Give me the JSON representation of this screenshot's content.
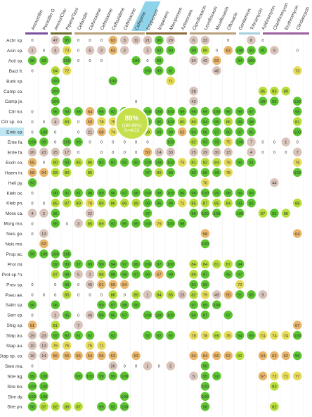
{
  "chart_data": {
    "type": "dotmatrix",
    "columns": [
      "Amoxicillin",
      "Penicillin G",
      "Amoxi/Clav",
      "Pipera/Tazo",
      "Cefazolin",
      "Cefuroxime",
      "Cefotaxime",
      "Ceftazidime",
      "Ceftriaxone",
      "Cefepime",
      "Ertapenem",
      "Imipenem",
      "Meropenem",
      "Aztreonam",
      "Ciprofloxacin",
      "Levofloxacin",
      "Moxifloxacin",
      "Ofloxacin",
      "Gentamicin",
      "Tobramycin",
      "Azithromycin",
      "Clarithromycin",
      "Erythromycin",
      "Clindamycin"
    ],
    "rows": [
      {
        "name": "Achr sp.",
        "values": [
          0,
          null,
          47,
          95,
          0,
          0,
          0,
          63,
          3,
          11,
          21,
          96,
          20,
          null,
          6,
          33,
          null,
          0,
          null,
          8,
          0,
          null,
          null,
          null
        ]
      },
      {
        "name": "Acin sp.",
        "values": [
          1,
          0,
          4,
          73,
          0,
          5,
          2,
          63,
          2,
          null,
          2,
          92,
          90,
          null,
          90,
          89,
          0,
          63,
          100,
          90,
          91,
          9,
          null,
          0
        ]
      },
      {
        "name": "Acti sp.",
        "values": [
          96,
          93,
          null,
          100,
          0,
          0,
          0,
          null,
          null,
          100,
          0,
          99,
          null,
          null,
          34,
          42,
          50,
          null,
          94,
          100,
          null,
          null,
          null,
          null
        ]
      },
      {
        "name": "Bact fr.",
        "values": [
          0,
          null,
          84,
          72,
          null,
          null,
          null,
          null,
          null,
          null,
          100,
          93,
          91,
          null,
          null,
          null,
          48,
          null,
          null,
          null,
          null,
          null,
          null,
          73
        ]
      },
      {
        "name": "Burk sp.",
        "values": [
          null,
          null,
          100,
          null,
          null,
          null,
          null,
          100,
          null,
          null,
          null,
          null,
          71,
          null,
          null,
          null,
          null,
          null,
          null,
          null,
          null,
          null,
          null,
          null
        ]
      },
      {
        "name": "Camp co.",
        "values": [
          null,
          null,
          100,
          null,
          null,
          null,
          null,
          null,
          null,
          null,
          null,
          null,
          null,
          null,
          28,
          null,
          null,
          null,
          null,
          null,
          85,
          83,
          80,
          null
        ]
      },
      {
        "name": "Camp je.",
        "values": [
          null,
          null,
          100,
          null,
          null,
          null,
          null,
          null,
          null,
          0,
          null,
          null,
          null,
          null,
          42,
          null,
          null,
          null,
          null,
          null,
          99,
          92,
          null,
          100
        ]
      },
      {
        "name": "Citr ko.",
        "values": [
          0,
          null,
          96,
          93,
          98,
          64,
          96,
          92,
          97,
          99,
          100,
          100,
          100,
          99,
          96,
          99,
          100,
          96,
          99,
          97,
          null,
          null,
          null,
          98
        ]
      },
      {
        "name": "Citr sp. no.",
        "values": [
          0,
          0,
          4,
          83,
          0,
          50,
          78,
          75,
          76,
          79,
          90,
          96,
          100,
          80,
          80,
          94,
          95,
          86,
          99,
          98,
          null,
          null,
          null,
          81
        ]
      },
      {
        "name": "Ente sp.",
        "values": [
          0,
          100,
          0,
          null,
          0,
          21,
          68,
          74,
          85,
          null,
          89,
          99,
          99,
          62,
          94,
          96,
          97,
          96,
          97,
          95,
          null,
          null,
          null,
          100
        ]
      },
      {
        "name": "Ente fa.",
        "values": [
          100,
          99,
          0,
          100,
          99,
          0,
          0,
          0,
          0,
          0,
          0,
          null,
          100,
          null,
          82,
          93,
          95,
          75,
          100,
          7,
          0,
          0,
          1,
          0
        ]
      },
      {
        "name": "Ente fa.",
        "values": [
          26,
          23,
          25,
          17,
          0,
          null,
          0,
          0,
          0,
          0,
          50,
          14,
          33,
          null,
          25,
          29,
          30,
          13,
          null,
          4,
          0,
          0,
          0,
          7
        ]
      },
      {
        "name": "Esch co.",
        "values": [
          55,
          0,
          80,
          93,
          85,
          86,
          92,
          91,
          92,
          92,
          100,
          100,
          100,
          75,
          81,
          82,
          84,
          78,
          92,
          91,
          null,
          null,
          null,
          76
        ]
      },
      {
        "name": "Haem in.",
        "values": [
          68,
          64,
          83,
          80,
          null,
          85,
          null,
          null,
          null,
          null,
          97,
          89,
          99,
          null,
          92,
          96,
          99,
          78,
          null,
          null,
          null,
          null,
          null,
          100
        ]
      },
      {
        "name": "Heli py.",
        "values": [
          93,
          null,
          null,
          null,
          null,
          null,
          null,
          null,
          null,
          null,
          null,
          null,
          null,
          null,
          null,
          70,
          null,
          null,
          null,
          null,
          null,
          44,
          null,
          null
        ]
      },
      {
        "name": "Kleb ox.",
        "values": [
          0,
          null,
          90,
          91,
          91,
          98,
          99,
          96,
          97,
          98,
          100,
          98,
          100,
          96,
          98,
          100,
          99,
          98,
          99,
          99,
          null,
          null,
          null,
          null
        ]
      },
      {
        "name": "Kleb pn.",
        "values": [
          0,
          0,
          85,
          87,
          80,
          78,
          89,
          86,
          86,
          89,
          99,
          96,
          99,
          71,
          85,
          87,
          85,
          84,
          93,
          92,
          null,
          null,
          null,
          88
        ]
      },
      {
        "name": "Mora ca.",
        "values": [
          4,
          2,
          95,
          null,
          null,
          22,
          null,
          null,
          null,
          null,
          97,
          null,
          null,
          null,
          99,
          100,
          100,
          null,
          100,
          null,
          87,
          92,
          86,
          null
        ]
      },
      {
        "name": "Morg mo.",
        "values": [
          0,
          null,
          96,
          0,
          3,
          85,
          89,
          92,
          95,
          99,
          100,
          79,
          100,
          98,
          null,
          null,
          null,
          null,
          null,
          null,
          null,
          null,
          null,
          null
        ]
      },
      {
        "name": "Neis go.",
        "values": [
          0,
          13,
          null,
          null,
          null,
          null,
          null,
          null,
          null,
          null,
          null,
          null,
          null,
          null,
          null,
          58,
          null,
          null,
          null,
          null,
          null,
          null,
          null,
          64
        ]
      },
      {
        "name": "Neis me.",
        "values": [
          null,
          62,
          null,
          null,
          null,
          null,
          null,
          null,
          null,
          null,
          null,
          null,
          null,
          null,
          null,
          100,
          null,
          null,
          null,
          null,
          null,
          null,
          null,
          null
        ]
      },
      {
        "name": "Prop ac.",
        "values": [
          99,
          100,
          100,
          100,
          null,
          null,
          null,
          null,
          null,
          null,
          null,
          null,
          null,
          null,
          null,
          null,
          null,
          null,
          null,
          null,
          null,
          null,
          null,
          null
        ]
      },
      {
        "name": "Prot mi.",
        "values": [
          null,
          null,
          92,
          99,
          97,
          99,
          99,
          94,
          97,
          99,
          100,
          97,
          100,
          null,
          84,
          84,
          81,
          87,
          94,
          null,
          null,
          null,
          null,
          null
        ]
      },
      {
        "name": "Prot sp.*n.",
        "values": [
          null,
          null,
          87,
          98,
          5,
          2,
          88,
          98,
          99,
          97,
          99,
          67,
          99,
          null,
          89,
          97,
          null,
          95,
          97,
          null,
          null,
          null,
          null,
          null
        ]
      },
      {
        "name": "Prov sp.",
        "values": [
          0,
          null,
          0,
          99,
          0,
          45,
          61,
          59,
          64,
          null,
          null,
          null,
          null,
          null,
          91,
          93,
          null,
          null,
          72,
          null,
          null,
          null,
          null,
          null
        ]
      },
      {
        "name": "Pseu ae.",
        "values": [
          0,
          0,
          0,
          85,
          0,
          0,
          0,
          88,
          0,
          89,
          1,
          84,
          85,
          23,
          82,
          79,
          49,
          55,
          91,
          95,
          9,
          null,
          null,
          null
        ]
      },
      {
        "name": "Salm sp.",
        "values": [
          96,
          null,
          96,
          null,
          null,
          null,
          99,
          97,
          98,
          99,
          null,
          null,
          null,
          null,
          97,
          99,
          100,
          null,
          null,
          null,
          null,
          null,
          null,
          null
        ]
      },
      {
        "name": "Serr sp.",
        "values": [
          0,
          null,
          1,
          95,
          0,
          49,
          99,
          95,
          97,
          null,
          100,
          100,
          100,
          null,
          94,
          97,
          null,
          97,
          null,
          null,
          null,
          null,
          null,
          null
        ]
      },
      {
        "name": "Shig sp.",
        "values": [
          61,
          null,
          81,
          null,
          7,
          null,
          null,
          null,
          null,
          null,
          null,
          null,
          null,
          null,
          null,
          null,
          null,
          null,
          null,
          null,
          null,
          null,
          null,
          67
        ]
      },
      {
        "name": "Stap au.",
        "values": [
          29,
          23,
          92,
          92,
          91,
          92,
          null,
          92,
          null,
          null,
          92,
          92,
          92,
          null,
          78,
          78,
          89,
          78,
          94,
          99,
          74,
          74,
          74,
          100
        ]
      },
      {
        "name": "Stap au.",
        "values": [
          10,
          13,
          76,
          75,
          null,
          75,
          71,
          null,
          null,
          null,
          null,
          null,
          null,
          null,
          null,
          null,
          null,
          null,
          null,
          null,
          null,
          null,
          null,
          null
        ]
      },
      {
        "name": "Stap sp. co.",
        "values": [
          16,
          14,
          56,
          56,
          56,
          54,
          56,
          53,
          null,
          53,
          null,
          null,
          null,
          null,
          64,
          64,
          66,
          62,
          82,
          null,
          54,
          62,
          62,
          99
        ]
      },
      {
        "name": "Sten ma.",
        "values": [
          0,
          null,
          null,
          null,
          null,
          null,
          null,
          26,
          0,
          0,
          1,
          0,
          2,
          null,
          null,
          90,
          null,
          null,
          null,
          null,
          null,
          null,
          null,
          null
        ]
      },
      {
        "name": "Stre ag.",
        "values": [
          99,
          100,
          null,
          null,
          100,
          100,
          99,
          99,
          100,
          null,
          null,
          null,
          null,
          null,
          5,
          95,
          92,
          null,
          null,
          null,
          67,
          72,
          71,
          77
        ]
      },
      {
        "name": "Stre bo.",
        "values": [
          100,
          100,
          null,
          null,
          null,
          null,
          null,
          null,
          null,
          null,
          null,
          null,
          null,
          null,
          null,
          100,
          null,
          null,
          null,
          null,
          null,
          83,
          null,
          null
        ]
      },
      {
        "name": "Stre dy.",
        "values": [
          100,
          100,
          null,
          null,
          null,
          null,
          null,
          null,
          100,
          null,
          null,
          null,
          null,
          null,
          null,
          100,
          null,
          null,
          null,
          null,
          null,
          null,
          null,
          null
        ]
      },
      {
        "name": "Stre pn.",
        "values": [
          98,
          87,
          82,
          89,
          87,
          null,
          99,
          92,
          100,
          null,
          null,
          null,
          null,
          null,
          null,
          98,
          null,
          null,
          null,
          null,
          null,
          82,
          null,
          null
        ]
      }
    ],
    "tooltip": {
      "value": "89%",
      "range": "(190-89%)",
      "n": "N=4023"
    }
  }
}
